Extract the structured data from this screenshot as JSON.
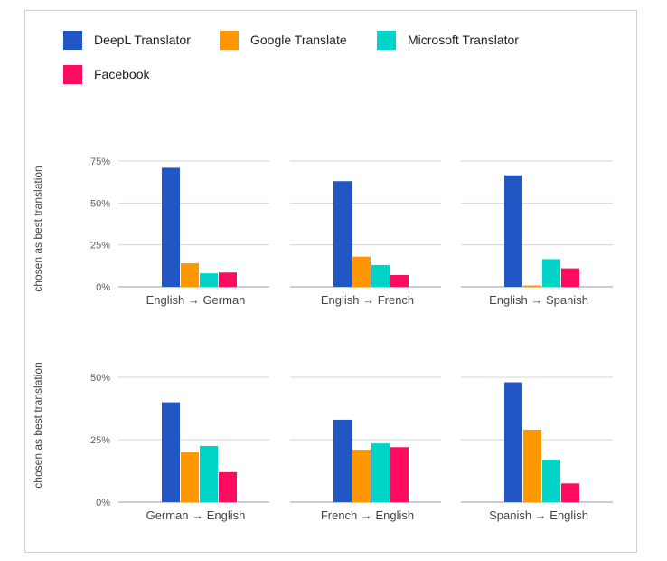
{
  "legend": [
    {
      "name": "DeepL Translator",
      "color": "#2256c4"
    },
    {
      "name": "Google Translate",
      "color": "#ff9800"
    },
    {
      "name": "Microsoft Translator",
      "color": "#00d4c8"
    },
    {
      "name": "Facebook",
      "color": "#ff0b5f"
    }
  ],
  "chart_data": [
    {
      "type": "bar",
      "ylabel": "chosen as best translation",
      "yticks": [
        "0%",
        "25%",
        "50%",
        "75%"
      ],
      "ylim": [
        0,
        75
      ],
      "series_names": [
        "DeepL Translator",
        "Google Translate",
        "Microsoft Translator",
        "Facebook"
      ],
      "panels": [
        {
          "category": "English → German",
          "values": [
            71,
            14,
            8,
            8.5
          ]
        },
        {
          "category": "English → French",
          "values": [
            63,
            18,
            13,
            7
          ]
        },
        {
          "category": "English → Spanish",
          "values": [
            66.5,
            0.8,
            16.5,
            11
          ]
        }
      ]
    },
    {
      "type": "bar",
      "ylabel": "chosen as best translation",
      "yticks": [
        "0%",
        "25%",
        "50%"
      ],
      "ylim": [
        0,
        50
      ],
      "series_names": [
        "DeepL Translator",
        "Google Translate",
        "Microsoft Translator",
        "Facebook"
      ],
      "panels": [
        {
          "category": "German → English",
          "values": [
            40,
            20,
            22.5,
            12
          ]
        },
        {
          "category": "French → English",
          "values": [
            33,
            21,
            23.5,
            22
          ]
        },
        {
          "category": "Spanish → English",
          "values": [
            48,
            29,
            17,
            7.5
          ]
        }
      ]
    }
  ]
}
